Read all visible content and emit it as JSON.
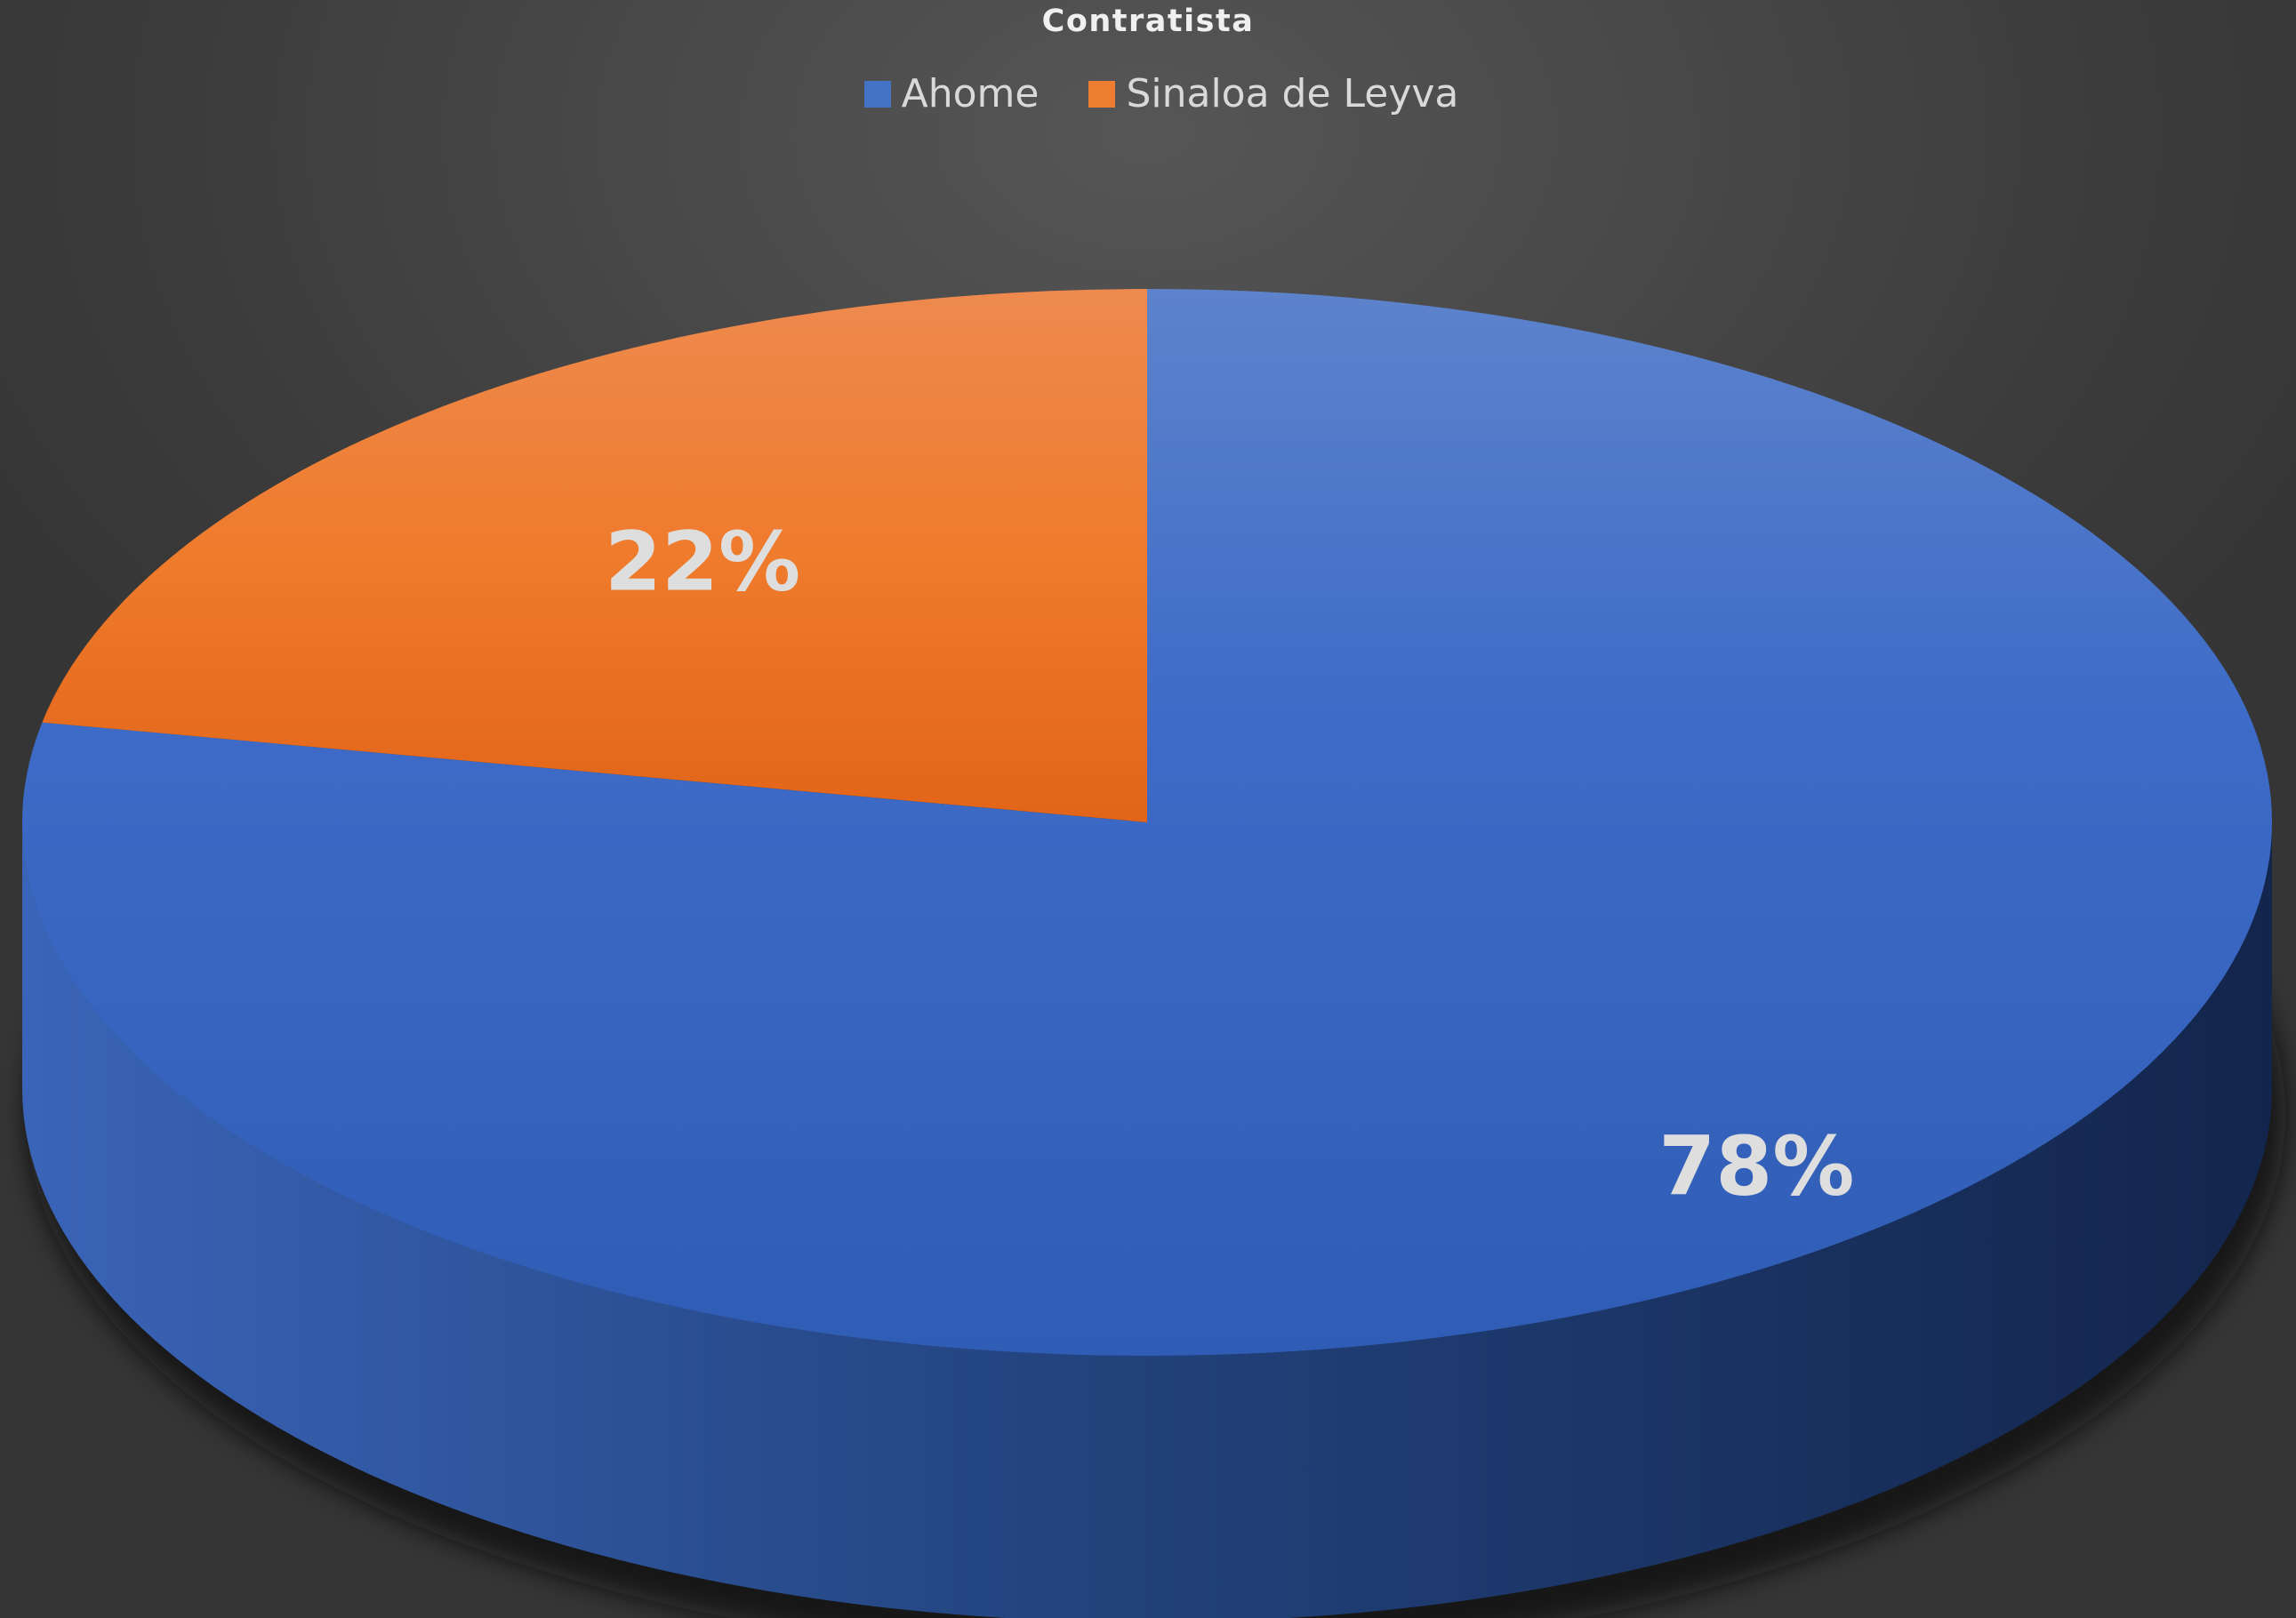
{
  "chart_data": {
    "type": "pie",
    "title": "Contratista",
    "categories": [
      "Ahome",
      "Sinaloa de Leyva"
    ],
    "values": [
      78,
      22
    ],
    "data_labels": [
      "78%",
      "22%"
    ],
    "colors": [
      "#4472c4",
      "#ed7d31"
    ],
    "legend_position": "top",
    "style": "3d"
  }
}
